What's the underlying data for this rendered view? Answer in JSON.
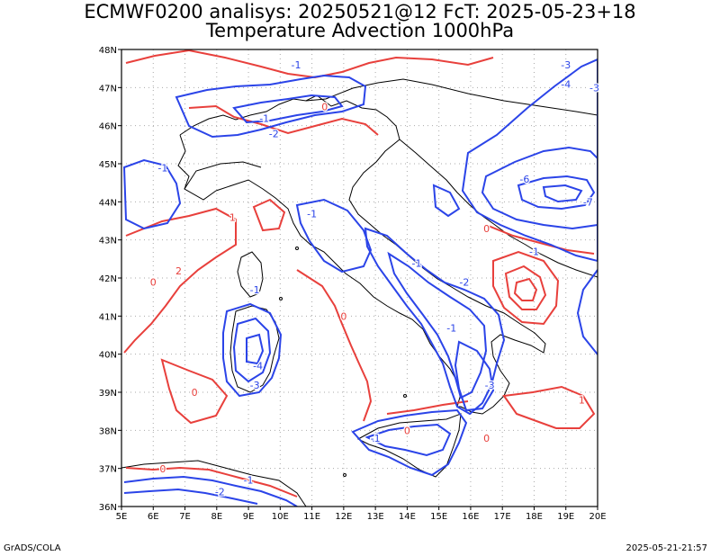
{
  "title": {
    "line1": "ECMWF0200 analisys: 20250521@12 FcT: 2025-05-23+18",
    "line2": "Temperature Advection 1000hPa"
  },
  "footer": {
    "left": "GrADS/COLA",
    "right": "2025-05-21-21:57"
  },
  "axes": {
    "lon_labels": [
      "5E",
      "6E",
      "7E",
      "8E",
      "9E",
      "10E",
      "11E",
      "12E",
      "13E",
      "14E",
      "15E",
      "16E",
      "17E",
      "18E",
      "19E",
      "20E"
    ],
    "lat_labels": [
      "48N",
      "47N",
      "46N",
      "45N",
      "44N",
      "43N",
      "42N",
      "41N",
      "40N",
      "39N",
      "38N",
      "37N",
      "36N"
    ]
  },
  "colors": {
    "positive": "#e8403c",
    "negative": "#2b44e8",
    "coast": "#000000",
    "grid": "#aaaaaa"
  },
  "contour_labels": [
    {
      "text": "0",
      "c": "r",
      "lon": 6.0,
      "lat": 41.8
    },
    {
      "text": "1",
      "c": "r",
      "lon": 8.5,
      "lat": 43.5
    },
    {
      "text": "2",
      "c": "r",
      "lon": 6.8,
      "lat": 42.1
    },
    {
      "text": "0",
      "c": "r",
      "lon": 12.0,
      "lat": 40.9
    },
    {
      "text": "0",
      "c": "r",
      "lon": 7.3,
      "lat": 38.9
    },
    {
      "text": "0",
      "c": "r",
      "lon": 6.3,
      "lat": 36.9
    },
    {
      "text": "0",
      "c": "r",
      "lon": 11.4,
      "lat": 46.4
    },
    {
      "text": "0",
      "c": "r",
      "lon": 16.5,
      "lat": 43.2
    },
    {
      "text": "0",
      "c": "r",
      "lon": 14.0,
      "lat": 37.9
    },
    {
      "text": "0",
      "c": "r",
      "lon": 16.5,
      "lat": 37.7
    },
    {
      "text": "1",
      "c": "r",
      "lon": 19.5,
      "lat": 38.7
    },
    {
      "text": "-1",
      "c": "b",
      "lon": 10.5,
      "lat": 47.5
    },
    {
      "text": "-1",
      "c": "b",
      "lon": 9.5,
      "lat": 46.1
    },
    {
      "text": "-2",
      "c": "b",
      "lon": 9.8,
      "lat": 45.7
    },
    {
      "text": "-1",
      "c": "b",
      "lon": 6.3,
      "lat": 44.8
    },
    {
      "text": "-1",
      "c": "b",
      "lon": 11.0,
      "lat": 43.6
    },
    {
      "text": "-1",
      "c": "b",
      "lon": 9.2,
      "lat": 41.6
    },
    {
      "text": "-4",
      "c": "b",
      "lon": 9.3,
      "lat": 39.6
    },
    {
      "text": "-3",
      "c": "b",
      "lon": 9.2,
      "lat": 39.1
    },
    {
      "text": "-1",
      "c": "b",
      "lon": 14.3,
      "lat": 42.3
    },
    {
      "text": "-2",
      "c": "b",
      "lon": 15.8,
      "lat": 41.8
    },
    {
      "text": "-1",
      "c": "b",
      "lon": 15.4,
      "lat": 40.6
    },
    {
      "text": "-3",
      "c": "b",
      "lon": 16.6,
      "lat": 39.1
    },
    {
      "text": "-1",
      "c": "b",
      "lon": 13.0,
      "lat": 37.7
    },
    {
      "text": "-2",
      "c": "b",
      "lon": 8.1,
      "lat": 36.3
    },
    {
      "text": "-1",
      "c": "b",
      "lon": 9.0,
      "lat": 36.6
    },
    {
      "text": "-3",
      "c": "b",
      "lon": 19.0,
      "lat": 47.5
    },
    {
      "text": "-4",
      "c": "b",
      "lon": 19.0,
      "lat": 47.0
    },
    {
      "text": "-3",
      "c": "b",
      "lon": 19.9,
      "lat": 46.9
    },
    {
      "text": "-6",
      "c": "b",
      "lon": 17.7,
      "lat": 44.5
    },
    {
      "text": "-7",
      "c": "b",
      "lon": 19.7,
      "lat": 43.9
    },
    {
      "text": "-1",
      "c": "b",
      "lon": 18.0,
      "lat": 42.6
    }
  ]
}
